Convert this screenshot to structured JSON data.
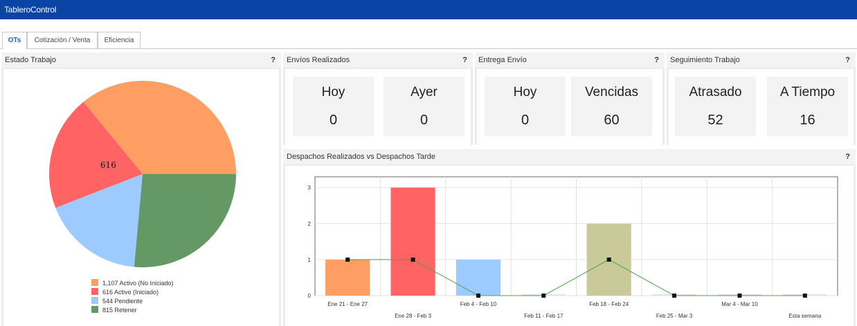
{
  "app": {
    "title": "TableroControl"
  },
  "tabs": [
    {
      "label": "OTs",
      "active": true
    },
    {
      "label": "Cotización / Venta",
      "active": false
    },
    {
      "label": "Eficiencia",
      "active": false
    }
  ],
  "help_label": "?",
  "estado": {
    "title": "Estado Trabajo",
    "pie_label": "616",
    "legend": [
      {
        "label": "1,107 Activo (No Iniciado)",
        "color": "#ff9e63"
      },
      {
        "label": "616 Activo (Iniciado)",
        "color": "#ff6363"
      },
      {
        "label": "544 Pendiente",
        "color": "#9ecbff"
      },
      {
        "label": "815 Retener",
        "color": "#649864"
      }
    ]
  },
  "envios": {
    "title": "Envíos Realizados",
    "stats": [
      {
        "label": "Hoy",
        "value": "0"
      },
      {
        "label": "Ayer",
        "value": "0"
      }
    ]
  },
  "entrega": {
    "title": "Entrega Envío",
    "stats": [
      {
        "label": "Hoy",
        "value": "0"
      },
      {
        "label": "Vencidas",
        "value": "60"
      }
    ]
  },
  "seguimiento": {
    "title": "Seguimiento Trabajo",
    "stats": [
      {
        "label": "Atrasado",
        "value": "52"
      },
      {
        "label": "A Tiempo",
        "value": "16"
      }
    ]
  },
  "despachos": {
    "title": "Despachos Realizados vs Despachos Tarde"
  },
  "chart_data": [
    {
      "type": "pie",
      "categories": [
        "Activo (No Iniciado)",
        "Activo (Iniciado)",
        "Pendiente",
        "Retener"
      ],
      "values": [
        1107,
        616,
        544,
        815
      ],
      "colors": [
        "#ff9e63",
        "#ff6363",
        "#9ecbff",
        "#649864"
      ],
      "data_labels": [
        "",
        "616",
        "",
        ""
      ]
    },
    {
      "type": "bar",
      "categories": [
        "Ene 21 - Ene 27",
        "Ene 28 - Feb 3",
        "Feb 4  - Feb 10",
        "Feb 11 - Feb 17",
        "Feb 18 - Feb 24",
        "Feb 25 - Mar 3",
        "Mar 4  - Mar 10",
        "Esta semana"
      ],
      "series": [
        {
          "type": "bar",
          "values": [
            1,
            3,
            1,
            0,
            2,
            0,
            0,
            0
          ],
          "colors": [
            "#ff9e63",
            "#ff6363",
            "#9ecbff",
            "#e3e3f0",
            "#c9c99a",
            "#e3e3f0",
            "#e3e3f0",
            "#e3e3f0"
          ]
        },
        {
          "type": "line",
          "values": [
            1,
            1,
            0,
            0,
            1,
            0,
            0,
            0
          ],
          "color": "#4aa64a"
        }
      ],
      "ylim": [
        0,
        3.3
      ],
      "yticks": [
        "0",
        "1",
        "2",
        "3"
      ],
      "grid": true
    }
  ]
}
